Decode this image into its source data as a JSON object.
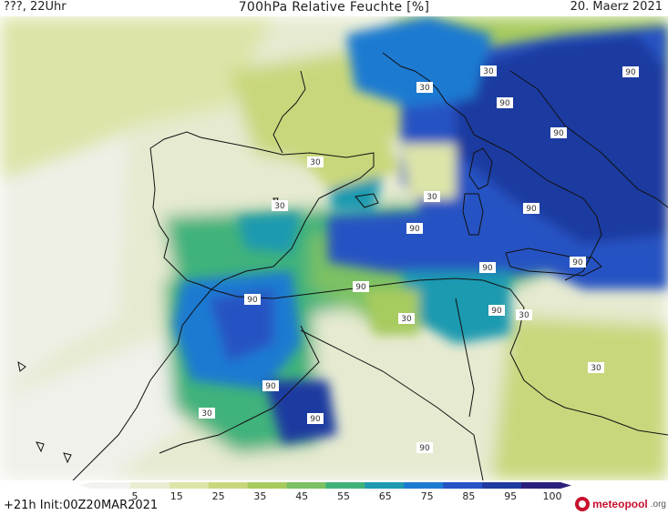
{
  "header": {
    "left": "???, 22Uhr",
    "title": "700hPa Relative Feuchte [%]",
    "date": "20. Maerz 2021"
  },
  "footer": {
    "left": "+21h  Init:00Z20MAR2021",
    "logo_text": "meteopool",
    "logo_tld": ".org"
  },
  "colorbar": {
    "ticks": [
      "5",
      "15",
      "25",
      "35",
      "45",
      "55",
      "65",
      "75",
      "85",
      "95",
      "100"
    ],
    "colors": [
      "#f2f2ef",
      "#ebedd2",
      "#dde4a8",
      "#c9d77c",
      "#a8cb5e",
      "#7cc164",
      "#3fb27b",
      "#1f9ab0",
      "#1d7ad1",
      "#2553c3",
      "#1f3aa0",
      "#2a1f7a"
    ]
  },
  "contour_labels": [
    "90",
    "30",
    "90",
    "90",
    "30",
    "30",
    "30",
    "90",
    "90",
    "30",
    "90",
    "90",
    "90",
    "90",
    "30",
    "30",
    "90",
    "90",
    "30",
    "90",
    "30",
    "90"
  ]
}
